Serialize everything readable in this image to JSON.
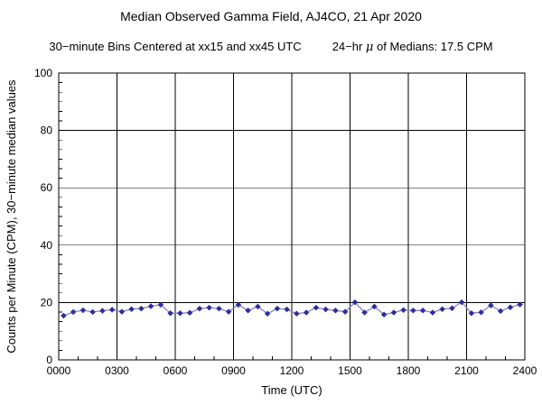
{
  "title": "Median Observed Gamma Field, AJ4CO, 21 Apr 2020",
  "subtitle": {
    "bins": "30−minute Bins Centered at xx15 and xx45 UTC",
    "mean_prefix": "24−hr ",
    "mu": "μ",
    "mean_suffix": " of Medians: 17.5 CPM"
  },
  "chart_data": {
    "type": "line",
    "title": "Median Observed Gamma Field, AJ4CO, 21 Apr 2020",
    "xlabel": "Time (UTC)",
    "ylabel": "Counts per Minute (CPM), 30−minute median values",
    "xlim_hours": [
      0,
      24
    ],
    "ylim": [
      0,
      100
    ],
    "grid": true,
    "legend": "none",
    "xtick_hours": [
      0,
      3,
      6,
      9,
      12,
      15,
      18,
      21,
      24
    ],
    "xtick_labels": [
      "0000",
      "0300",
      "0600",
      "0900",
      "1200",
      "1500",
      "1800",
      "2100",
      "2400"
    ],
    "ytick_values": [
      0,
      20,
      40,
      60,
      80,
      100
    ],
    "ytick_labels": [
      "0",
      "20",
      "40",
      "60",
      "80",
      "100"
    ],
    "minor_x_step_hours": 1,
    "minor_y_divisions_per_major": 6,
    "bin_center_times": [
      "0015",
      "0045",
      "0115",
      "0145",
      "0215",
      "0245",
      "0315",
      "0345",
      "0415",
      "0445",
      "0515",
      "0545",
      "0615",
      "0645",
      "0715",
      "0745",
      "0815",
      "0845",
      "0915",
      "0945",
      "1015",
      "1045",
      "1115",
      "1145",
      "1215",
      "1245",
      "1315",
      "1345",
      "1415",
      "1445",
      "1515",
      "1545",
      "1615",
      "1645",
      "1715",
      "1745",
      "1815",
      "1845",
      "1915",
      "1945",
      "2015",
      "2045",
      "2115",
      "2145",
      "2215",
      "2245",
      "2315",
      "2345"
    ],
    "values": [
      15.4,
      16.7,
      17.3,
      16.7,
      17.1,
      17.5,
      16.8,
      17.7,
      17.9,
      18.7,
      19.2,
      16.3,
      16.3,
      16.4,
      17.9,
      18.2,
      17.9,
      16.8,
      19.2,
      17.2,
      18.6,
      16.1,
      17.9,
      17.6,
      16.1,
      16.5,
      18.2,
      17.6,
      17.2,
      16.8,
      20.1,
      16.5,
      18.6,
      15.8,
      16.5,
      17.4,
      17.2,
      17.2,
      16.5,
      17.7,
      18.0,
      20.1,
      16.3,
      16.6,
      19.0,
      17.0,
      18.3,
      19.3
    ],
    "mean_of_medians_cpm": 17.5,
    "line_color": "#8585c7",
    "marker_color": "#2e2e99",
    "axis_color": "#000000",
    "background_color": "#ffffff"
  }
}
